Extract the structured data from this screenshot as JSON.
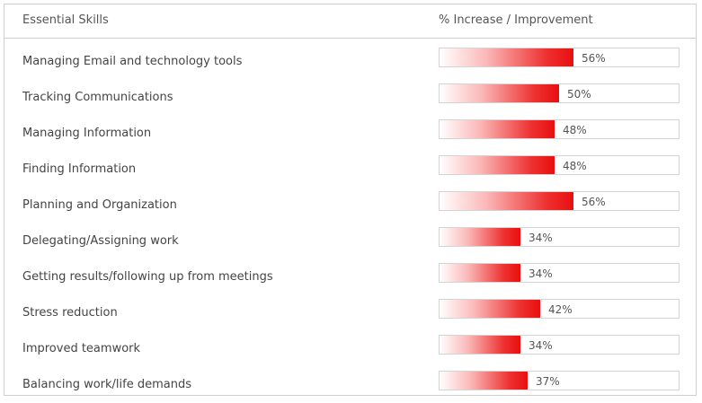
{
  "header": {
    "left_label": "Essential Skills",
    "right_label": "% Increase / Improvement"
  },
  "chart_data": {
    "type": "bar",
    "orientation": "horizontal",
    "categories": [
      "Managing Email and technology tools",
      "Tracking Communications",
      "Managing Information",
      "Finding Information",
      "Planning and Organization",
      "Delegating/Assigning work",
      "Getting results/following up from meetings",
      "Stress reduction",
      "Improved teamwork",
      "Balancing work/life demands"
    ],
    "values": [
      56,
      50,
      48,
      48,
      56,
      34,
      34,
      42,
      34,
      37
    ],
    "value_labels": [
      "56%",
      "50%",
      "48%",
      "48%",
      "56%",
      "34%",
      "34%",
      "42%",
      "34%",
      "37%"
    ],
    "xlim": [
      0,
      100
    ],
    "bar_color": "#e80f0f",
    "grid": false
  }
}
